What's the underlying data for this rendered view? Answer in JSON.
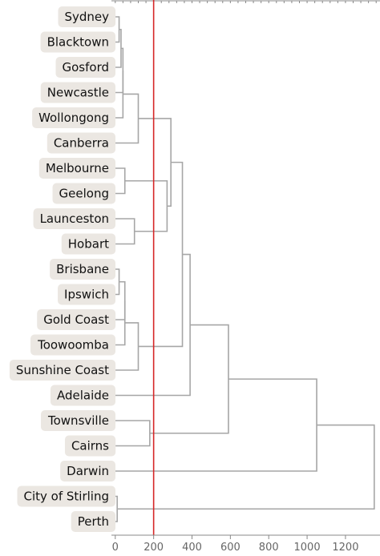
{
  "chart_data": {
    "type": "dendrogram",
    "orientation": "horizontal",
    "leaves": [
      "Sydney",
      "Blacktown",
      "Gosford",
      "Newcastle",
      "Wollongong",
      "Canberra",
      "Melbourne",
      "Geelong",
      "Launceston",
      "Hobart",
      "Brisbane",
      "Ipswich",
      "Gold Coast",
      "Toowoomba",
      "Sunshine Coast",
      "Adelaide",
      "Townsville",
      "Cairns",
      "Darwin",
      "City of Stirling",
      "Perth"
    ],
    "merges": [
      {
        "left": "Sydney",
        "right": "Blacktown",
        "height": 20
      },
      {
        "left": "Brisbane",
        "right": "Ipswich",
        "height": 20
      },
      {
        "left": "City of Stirling",
        "right": "Perth",
        "height": 10
      },
      {
        "left": "Sydney+Blacktown",
        "right": "Gosford",
        "height": 30
      },
      {
        "left": "Sydney+Blacktown+Gosford",
        "right": "Newcastle",
        "height": 40
      },
      {
        "left": "Sydney..Newcastle",
        "right": "Wollongong",
        "height": 40
      },
      {
        "left": "Brisbane+Ipswich",
        "right": "Gold Coast",
        "height": 50
      },
      {
        "left": "Brisbane..Gold Coast",
        "right": "Toowoomba",
        "height": 50
      },
      {
        "left": "Melbourne",
        "right": "Geelong",
        "height": 50
      },
      {
        "left": "Launceston",
        "right": "Hobart",
        "height": 100
      },
      {
        "left": "Sydney..Wollongong",
        "right": "Canberra",
        "height": 120
      },
      {
        "left": "Brisbane..Toowoomba",
        "right": "Sunshine Coast",
        "height": 120
      },
      {
        "left": "Townsville",
        "right": "Cairns",
        "height": 180
      },
      {
        "left": "Melbourne+Geelong",
        "right": "Launceston+Hobart",
        "height": 270
      },
      {
        "left": "Sydney..Canberra",
        "right": "Melbourne..Hobart",
        "height": 290
      },
      {
        "left": "Sydney..Hobart",
        "right": "Brisbane..Sunshine Coast",
        "height": 350
      },
      {
        "left": "Sydney..Sunshine Coast",
        "right": "Adelaide",
        "height": 390
      },
      {
        "left": "Sydney..Adelaide",
        "right": "Townsville+Cairns",
        "height": 590
      },
      {
        "left": "Sydney..Cairns",
        "right": "Darwin",
        "height": 1050
      },
      {
        "left": "Sydney..Darwin",
        "right": "City of Stirling+Perth",
        "height": 1350
      }
    ],
    "threshold": 200,
    "xlim": [
      -20,
      1380
    ],
    "x_ticks": [
      0,
      200,
      400,
      600,
      800,
      1000,
      1200
    ],
    "colors": {
      "link": "#a6a6a6",
      "threshold_line": "#d62728",
      "label_background": "#ebe7e2",
      "label_text": "#111111",
      "tick_text": "#666666",
      "axis": "#888888"
    },
    "grid": false
  }
}
